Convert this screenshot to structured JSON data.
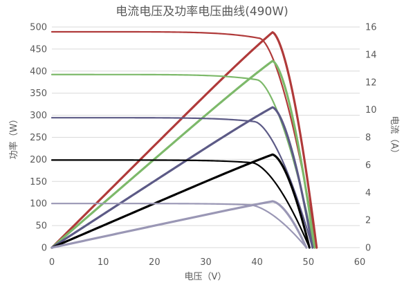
{
  "chart_data": {
    "type": "line",
    "title": "电流电压及功率电压曲线(490W)",
    "xlabel": "电压（V）",
    "ylabel_left": "功率（W）",
    "ylabel_right": "电流（A）",
    "xlim": [
      0,
      60
    ],
    "ylim_left": [
      0,
      500
    ],
    "ylim_right": [
      0,
      16
    ],
    "x_ticks": [
      "0",
      "10",
      "20",
      "30",
      "40",
      "50",
      "60"
    ],
    "y_left_ticks": [
      "0",
      "50",
      "100",
      "150",
      "200",
      "250",
      "300",
      "350",
      "400",
      "450",
      "500"
    ],
    "y_right_ticks": [
      "0",
      "2",
      "4",
      "6",
      "8",
      "10",
      "12",
      "14",
      "16"
    ],
    "grid": "horizontal",
    "legend": "none",
    "series": [
      {
        "color": "#b03a3a",
        "isc": 15.65,
        "vmp": 43.0,
        "pmax": 488,
        "voc": 51.6,
        "iv_knee": 40.5
      },
      {
        "color": "#7db96a",
        "isc": 12.55,
        "vmp": 43.0,
        "pmax": 423,
        "voc": 51.2,
        "iv_knee": 40.0
      },
      {
        "color": "#5c5a86",
        "isc": 9.42,
        "vmp": 43.0,
        "pmax": 318,
        "voc": 50.8,
        "iv_knee": 39.5
      },
      {
        "color": "#000000",
        "isc": 6.35,
        "vmp": 43.0,
        "pmax": 211,
        "voc": 50.2,
        "iv_knee": 39.0
      },
      {
        "color": "#9a97b5",
        "isc": 3.2,
        "vmp": 43.0,
        "pmax": 105,
        "voc": 49.6,
        "iv_knee": 38.5
      }
    ]
  }
}
